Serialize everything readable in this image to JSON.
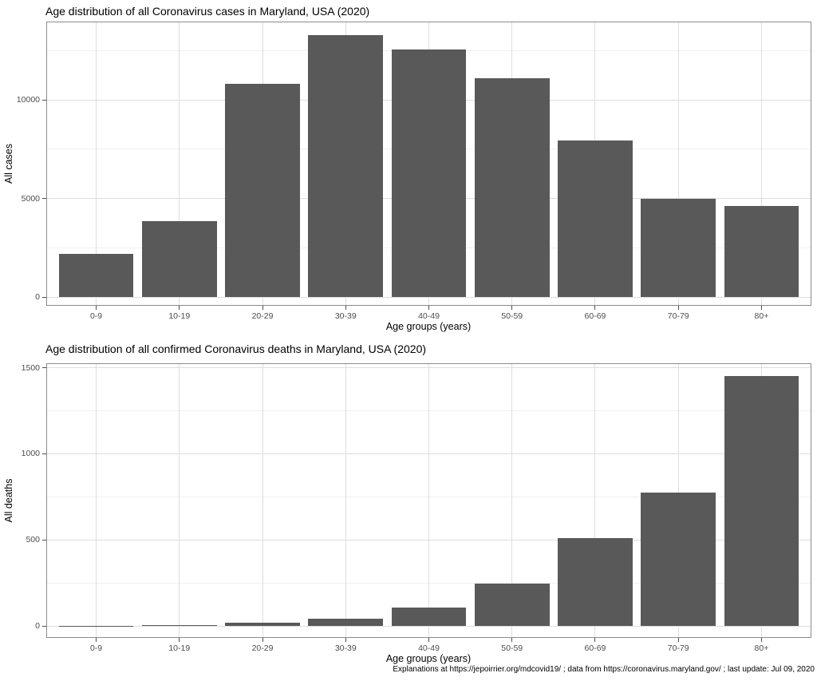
{
  "figure": {
    "background": "#ffffff",
    "footer": "Explanations at https://jepoirrier.org/mdcovid19/ ; data from https://coronavirus.maryland.gov/ ; last update: Jul 09, 2020"
  },
  "colors": {
    "bar_fill": "#595959",
    "panel_border": "#8c8c8c",
    "grid_major": "#dedede",
    "grid_minor": "#f0f0f0",
    "tick_mark": "#4d4d4d",
    "tick_label": "#4d4d4d",
    "title_text": "#000000"
  },
  "chart_data": [
    {
      "type": "bar",
      "title": "Age distribution of all Coronavirus cases in Maryland, USA (2020)",
      "xlabel": "Age groups (years)",
      "ylabel": "All cases",
      "categories": [
        "0-9",
        "10-19",
        "20-29",
        "30-39",
        "40-49",
        "50-59",
        "60-69",
        "70-79",
        "80+"
      ],
      "values": [
        2175,
        3850,
        10800,
        13300,
        12550,
        11100,
        7950,
        5000,
        4620
      ],
      "yticks": [
        0,
        5000,
        10000
      ],
      "yticks_minor": [
        2500,
        7500,
        12500
      ],
      "ylim": [
        -445,
        13970
      ],
      "grid": true,
      "legend": false
    },
    {
      "type": "bar",
      "title": "Age distribution of all confirmed Coronavirus deaths in Maryland, USA (2020)",
      "xlabel": "Age groups (years)",
      "ylabel": "All deaths",
      "categories": [
        "0-9",
        "10-19",
        "20-29",
        "30-39",
        "40-49",
        "50-59",
        "60-69",
        "70-79",
        "80+"
      ],
      "values": [
        1,
        4,
        20,
        42,
        105,
        247,
        512,
        773,
        1450
      ],
      "yticks": [
        0,
        500,
        1000,
        1500
      ],
      "yticks_minor": [
        250,
        750,
        1250
      ],
      "ylim": [
        -67,
        1526
      ],
      "grid": true,
      "legend": false
    }
  ]
}
